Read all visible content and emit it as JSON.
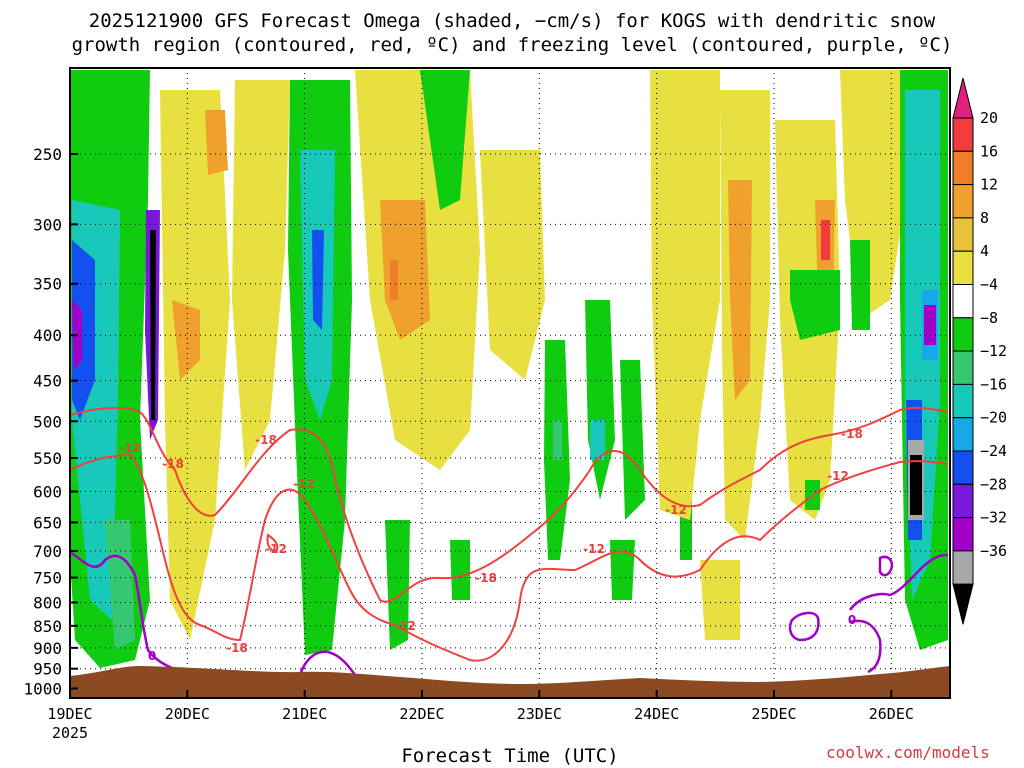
{
  "title": {
    "line1": "2025121900 GFS Forecast Omega (shaded, −cm/s) for KOGS with dendritic snow",
    "line2": "growth region (contoured, red, ºC) and freezing level (contoured, purple, ºC)"
  },
  "credit": "coolwx.com/models",
  "chart_data": {
    "type": "heatmap",
    "title": "2025121900 GFS Forecast Omega (shaded, −cm/s) for KOGS with dendritic snow growth region (contoured, red, ºC) and freezing level (contoured, purple, ºC)",
    "xlabel": "Forecast Time (UTC)",
    "ylabel": "",
    "x_ticks": [
      "19DEC",
      "20DEC",
      "21DEC",
      "22DEC",
      "23DEC",
      "24DEC",
      "25DEC",
      "26DEC"
    ],
    "x_year_label": "2025",
    "xlim_days": [
      0,
      7.5
    ],
    "y_ticks": [
      250,
      300,
      350,
      400,
      450,
      500,
      550,
      600,
      650,
      700,
      750,
      800,
      850,
      900,
      950,
      1000
    ],
    "ylim_hpa": [
      200,
      1025
    ],
    "colorbar": {
      "labels": [
        "20",
        "16",
        "12",
        "8",
        "4",
        "−4",
        "−8",
        "−12",
        "−16",
        "−20",
        "−24",
        "−28",
        "−32",
        "−36"
      ],
      "colors": [
        "#e2207f",
        "#f03c3c",
        "#f07d28",
        "#f0a02c",
        "#e8c23c",
        "#e8e040",
        "#ffffff",
        "#10cc10",
        "#36c870",
        "#18c8b8",
        "#18a8e8",
        "#1450f0",
        "#7818d8",
        "#a000c8",
        "#a8a8a8",
        "#000000"
      ]
    },
    "contour_labels": [
      {
        "value": "-12",
        "series": "dendritic",
        "color": "#e84040"
      },
      {
        "value": "-18",
        "series": "dendritic",
        "color": "#e84040"
      },
      {
        "value": "-18",
        "series": "dendritic",
        "color": "#e84040"
      },
      {
        "value": "-12",
        "series": "dendritic",
        "color": "#e84040"
      },
      {
        "value": "-12",
        "series": "dendritic",
        "color": "#e84040"
      },
      {
        "value": "-18",
        "series": "dendritic",
        "color": "#e84040"
      },
      {
        "value": "-12",
        "series": "dendritic",
        "color": "#e84040"
      },
      {
        "value": "-12",
        "series": "dendritic",
        "color": "#e84040"
      },
      {
        "value": "-18",
        "series": "dendritic",
        "color": "#e84040"
      },
      {
        "value": "-12",
        "series": "dendritic",
        "color": "#e84040"
      },
      {
        "value": "-18",
        "series": "dendritic",
        "color": "#e84040"
      },
      {
        "value": "-12",
        "series": "dendritic",
        "color": "#e84040"
      },
      {
        "value": "0",
        "series": "freezing",
        "color": "#a000c8"
      },
      {
        "value": "0",
        "series": "freezing",
        "color": "#a000c8"
      }
    ]
  }
}
